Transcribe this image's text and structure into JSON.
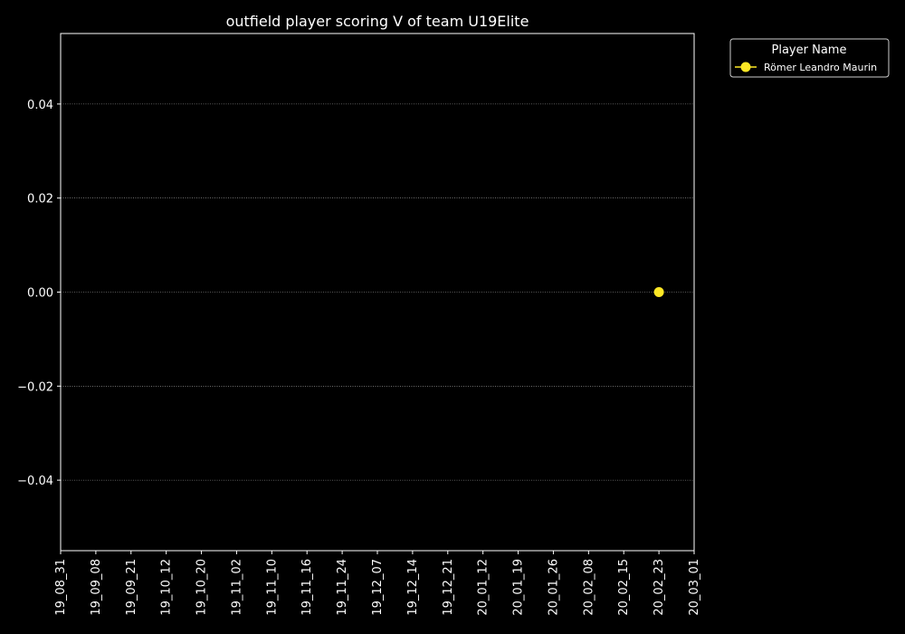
{
  "chart_data": {
    "type": "scatter",
    "title": "outfield player scoring V of team U19Elite",
    "xlabel": "",
    "ylabel": "",
    "x_categories": [
      "19_08_31",
      "19_09_08",
      "19_09_21",
      "19_10_12",
      "19_10_20",
      "19_11_02",
      "19_11_10",
      "19_11_16",
      "19_11_24",
      "19_12_07",
      "19_12_14",
      "19_12_21",
      "20_01_12",
      "20_01_19",
      "20_01_26",
      "20_02_08",
      "20_02_15",
      "20_02_23",
      "20_03_01"
    ],
    "yticks": [
      -0.04,
      -0.02,
      0.0,
      0.02,
      0.04
    ],
    "ytick_labels": [
      "−0.04",
      "−0.02",
      "0.00",
      "0.02",
      "0.04"
    ],
    "ylim": [
      -0.055,
      0.055
    ],
    "grid": "horizontal-dotted",
    "legend": {
      "title": "Player Name",
      "placement": "outside-top-right"
    },
    "series": [
      {
        "name": "Römer Leandro Maurin",
        "color": "#fde725",
        "points": [
          {
            "x": "20_02_23",
            "y": 0.0
          }
        ]
      }
    ]
  }
}
